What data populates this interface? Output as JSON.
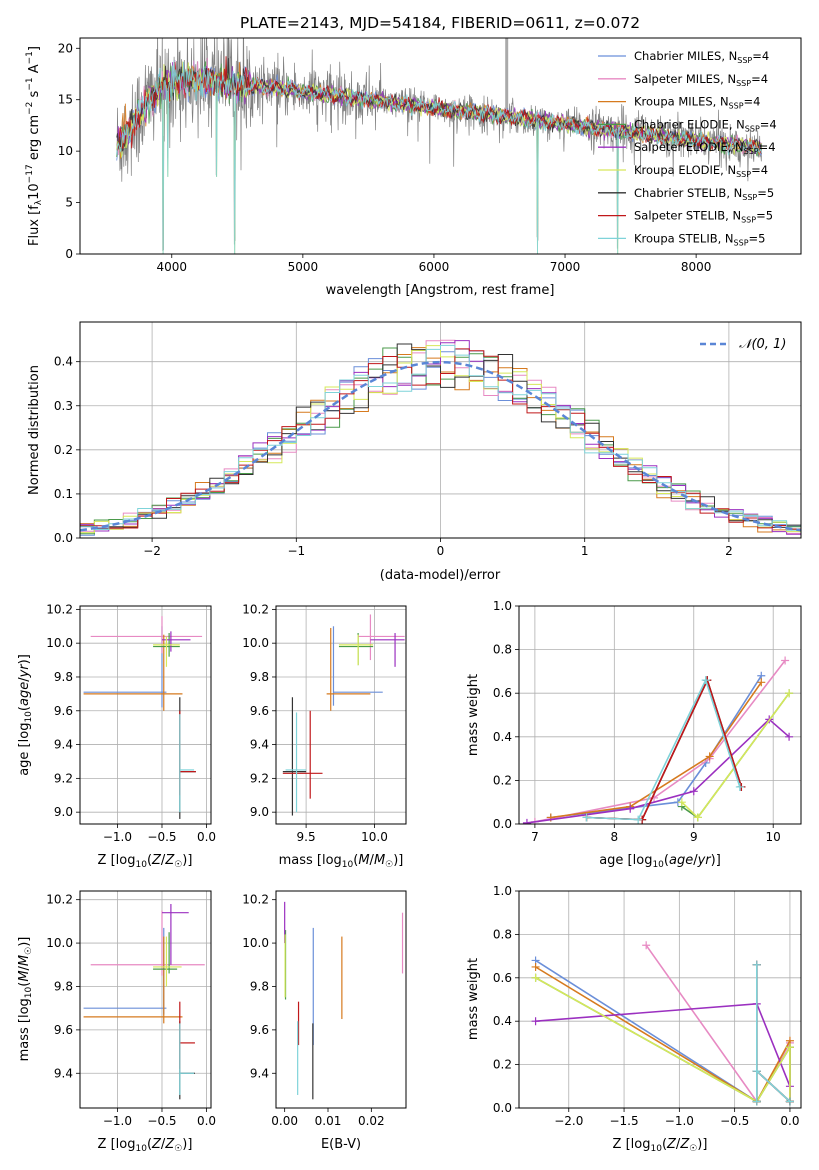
{
  "figure": {
    "title": "PLATE=2143, MJD=54184, FIBERID=0611, z=0.072",
    "models": [
      {
        "label_main": "Chabrier MILES, N",
        "label_sub": "SSP",
        "label_end": "=4",
        "color": "#6b8fd9"
      },
      {
        "label_main": "Salpeter MILES, N",
        "label_sub": "SSP",
        "label_end": "=4",
        "color": "#e78ac3"
      },
      {
        "label_main": "Kroupa MILES, N",
        "label_sub": "SSP",
        "label_end": "=4",
        "color": "#d67a1f"
      },
      {
        "label_main": "Chabrier ELODIE, N",
        "label_sub": "SSP",
        "label_end": "=4",
        "color": "#4a9a4a"
      },
      {
        "label_main": "Salpeter ELODIE, N",
        "label_sub": "SSP",
        "label_end": "=4",
        "color": "#9b30c0"
      },
      {
        "label_main": "Kroupa ELODIE, N",
        "label_sub": "SSP",
        "label_end": "=4",
        "color": "#d6e85a"
      },
      {
        "label_main": "Chabrier STELIB, N",
        "label_sub": "SSP",
        "label_end": "=5",
        "color": "#333333"
      },
      {
        "label_main": "Salpeter STELIB, N",
        "label_sub": "SSP",
        "label_end": "=5",
        "color": "#c0181a"
      },
      {
        "label_main": "Kroupa STELIB, N",
        "label_sub": "SSP",
        "label_end": "=5",
        "color": "#7fd3d9"
      }
    ],
    "data_color": "#808080",
    "gauss_color": "#5a86d6"
  },
  "chart_data": [
    {
      "id": "spectrum",
      "type": "line",
      "xlabel": "wavelength [Angstrom, rest frame]",
      "ylabel": "Flux [f_λ 10^-17 erg cm^-2 s^-1 A^-1]",
      "xlim": [
        3300,
        8800
      ],
      "ylim": [
        0,
        21
      ],
      "xticks": [
        4000,
        5000,
        6000,
        7000,
        8000
      ],
      "yticks": [
        0,
        5,
        10,
        15,
        20
      ],
      "grid": false,
      "legend": "top-right",
      "continuum": {
        "x": [
          3580,
          3700,
          3850,
          3950,
          4100,
          4300,
          4500,
          4800,
          5000,
          5200,
          5500,
          5800,
          6000,
          6300,
          6600,
          6900,
          7200,
          7400,
          7700,
          8000,
          8300,
          8500
        ],
        "y": [
          10.5,
          12.5,
          15.5,
          16.5,
          17.0,
          16.8,
          16.5,
          16.2,
          15.8,
          15.5,
          15.0,
          14.5,
          14.2,
          13.8,
          13.3,
          12.8,
          12.3,
          12.0,
          11.5,
          11.0,
          10.6,
          10.3
        ]
      },
      "absorption_dips": [
        {
          "x": 3934,
          "y": 0
        },
        {
          "x": 3969,
          "y": 7.5
        },
        {
          "x": 4340,
          "y": 7.5
        },
        {
          "x": 4480,
          "y": 0
        },
        {
          "x": 6790,
          "y": 0
        },
        {
          "x": 7400,
          "y": 0
        }
      ]
    },
    {
      "id": "residuals",
      "type": "histogram",
      "xlabel": "(data-model)/error",
      "ylabel": "Normed distribution",
      "xlim": [
        -2.5,
        2.5
      ],
      "ylim": [
        0,
        0.49
      ],
      "xticks": [
        -2,
        -1,
        0,
        1,
        2
      ],
      "yticks": [
        0.0,
        0.1,
        0.2,
        0.3,
        0.4
      ],
      "grid": true,
      "legend": "top-right",
      "legend_label": "𝒩(0, 1)",
      "bin_width": 0.1
    },
    {
      "id": "age_vs_Z",
      "type": "errorbar",
      "xlabel": "Z [log10(Z/Z☉)]",
      "ylabel": "age  [log10(age/yr)]",
      "xlim": [
        -1.42,
        0.05
      ],
      "ylim": [
        8.93,
        10.22
      ],
      "xticks": [
        -1.0,
        -0.5,
        0.0
      ],
      "yticks": [
        9.0,
        9.2,
        9.4,
        9.6,
        9.8,
        10.0,
        10.2
      ],
      "grid": true,
      "points": [
        {
          "m": 0,
          "x": -0.5,
          "xlo": -1.38,
          "xhi": -0.45,
          "y": 9.71,
          "ylo": 9.62,
          "yhi": 10.1
        },
        {
          "m": 1,
          "x": -0.5,
          "xlo": -1.3,
          "xhi": -0.05,
          "y": 10.04,
          "ylo": 9.94,
          "yhi": 10.16
        },
        {
          "m": 2,
          "x": -0.48,
          "xlo": -1.38,
          "xhi": -0.27,
          "y": 9.7,
          "ylo": 9.6,
          "yhi": 10.05
        },
        {
          "m": 3,
          "x": -0.42,
          "xlo": -0.6,
          "xhi": -0.3,
          "y": 9.98,
          "ylo": 9.92,
          "yhi": 10.06
        },
        {
          "m": 4,
          "x": -0.4,
          "xlo": -0.5,
          "xhi": -0.18,
          "y": 10.02,
          "ylo": 9.95,
          "yhi": 10.07
        },
        {
          "m": 5,
          "x": -0.45,
          "xlo": -0.6,
          "xhi": -0.3,
          "y": 9.99,
          "ylo": 9.86,
          "yhi": 10.04
        },
        {
          "m": 6,
          "x": -0.3,
          "xlo": -0.3,
          "xhi": -0.12,
          "y": 9.24,
          "ylo": 8.96,
          "yhi": 9.68
        },
        {
          "m": 7,
          "x": -0.3,
          "xlo": -0.3,
          "xhi": -0.12,
          "y": 9.24,
          "ylo": 9.1,
          "yhi": 9.6
        },
        {
          "m": 8,
          "x": -0.3,
          "xlo": -0.3,
          "xhi": -0.14,
          "y": 9.25,
          "ylo": 9.0,
          "yhi": 9.58
        }
      ]
    },
    {
      "id": "age_vs_mass",
      "type": "errorbar",
      "xlabel": "mass [log10(M/M☉)]",
      "ylabel": "",
      "xlim": [
        9.28,
        10.23
      ],
      "ylim": [
        8.93,
        10.22
      ],
      "xticks": [
        9.5,
        10.0
      ],
      "yticks": [
        9.0,
        9.2,
        9.4,
        9.6,
        9.8,
        10.0,
        10.2
      ],
      "grid": true,
      "points": [
        {
          "m": 0,
          "x": 9.7,
          "xlo": 9.7,
          "xhi": 10.06,
          "y": 9.71,
          "ylo": 9.63,
          "yhi": 10.1
        },
        {
          "m": 1,
          "x": 9.97,
          "xlo": 9.88,
          "xhi": 10.22,
          "y": 10.04,
          "ylo": 9.9,
          "yhi": 10.17
        },
        {
          "m": 2,
          "x": 9.68,
          "xlo": 9.65,
          "xhi": 9.97,
          "y": 9.7,
          "ylo": 9.6,
          "yhi": 10.09
        },
        {
          "m": 3,
          "x": 9.88,
          "xlo": 9.74,
          "xhi": 9.99,
          "y": 9.98,
          "ylo": 9.87,
          "yhi": 10.06
        },
        {
          "m": 4,
          "x": 10.15,
          "xlo": 9.97,
          "xhi": 10.22,
          "y": 10.02,
          "ylo": 9.86,
          "yhi": 10.06
        },
        {
          "m": 5,
          "x": 9.88,
          "xlo": 9.74,
          "xhi": 9.99,
          "y": 9.99,
          "ylo": 9.87,
          "yhi": 10.05
        },
        {
          "m": 6,
          "x": 9.4,
          "xlo": 9.33,
          "xhi": 9.5,
          "y": 9.24,
          "ylo": 8.98,
          "yhi": 9.68
        },
        {
          "m": 7,
          "x": 9.53,
          "xlo": 9.33,
          "xhi": 9.62,
          "y": 9.23,
          "ylo": 9.08,
          "yhi": 9.6
        },
        {
          "m": 8,
          "x": 9.43,
          "xlo": 9.35,
          "xhi": 9.5,
          "y": 9.25,
          "ylo": 9.0,
          "yhi": 9.59
        }
      ]
    },
    {
      "id": "weight_vs_age",
      "type": "line",
      "xlabel": "age  [log10(age/yr)]",
      "ylabel": "mass weight",
      "xlim": [
        6.8,
        10.35
      ],
      "ylim": [
        0.0,
        1.0
      ],
      "xticks": [
        7,
        8,
        9,
        10
      ],
      "yticks": [
        0.0,
        0.2,
        0.4,
        0.6,
        0.8,
        1.0
      ],
      "grid": true,
      "series": [
        {
          "m": 0,
          "x": [
            7.2,
            8.8,
            9.15,
            9.85
          ],
          "y": [
            0.03,
            0.1,
            0.28,
            0.68
          ]
        },
        {
          "m": 1,
          "x": [
            7.0,
            8.5,
            9.2,
            10.15
          ],
          "y": [
            0.01,
            0.12,
            0.3,
            0.75
          ]
        },
        {
          "m": 2,
          "x": [
            7.2,
            8.2,
            9.2,
            9.85
          ],
          "y": [
            0.03,
            0.08,
            0.31,
            0.65
          ]
        },
        {
          "m": 3,
          "x": [
            8.85,
            9.05,
            10.2
          ],
          "y": [
            0.08,
            0.03,
            0.6
          ]
        },
        {
          "m": 4,
          "x": [
            6.9,
            8.2,
            9.0,
            9.95,
            10.2
          ],
          "y": [
            0.005,
            0.07,
            0.15,
            0.48,
            0.4
          ]
        },
        {
          "m": 5,
          "x": [
            8.85,
            9.05,
            10.2
          ],
          "y": [
            0.1,
            0.03,
            0.6
          ]
        },
        {
          "m": 6,
          "x": [
            7.65,
            8.35,
            9.17,
            9.6
          ],
          "y": [
            0.03,
            0.02,
            0.66,
            0.17
          ]
        },
        {
          "m": 7,
          "x": [
            7.65,
            8.35,
            9.17,
            9.6
          ],
          "y": [
            0.03,
            0.02,
            0.66,
            0.17
          ]
        },
        {
          "m": 8,
          "x": [
            7.65,
            8.3,
            9.15,
            9.58
          ],
          "y": [
            0.03,
            0.02,
            0.66,
            0.17
          ]
        }
      ]
    },
    {
      "id": "mass_vs_Z",
      "type": "errorbar",
      "xlabel": "Z [log10(Z/Z☉)]",
      "ylabel": "mass [log10(M/M☉)]",
      "xlim": [
        -1.42,
        0.05
      ],
      "ylim": [
        9.24,
        10.24
      ],
      "xticks": [
        -1.0,
        -0.5,
        0.0
      ],
      "yticks": [
        9.4,
        9.6,
        9.8,
        10.0,
        10.2
      ],
      "grid": true,
      "points": [
        {
          "m": 0,
          "x": -0.48,
          "xlo": -1.38,
          "xhi": -0.45,
          "y": 9.7,
          "ylo": 9.67,
          "yhi": 10.07
        },
        {
          "m": 1,
          "x": -0.5,
          "xlo": -1.3,
          "xhi": -0.02,
          "y": 9.9,
          "ylo": 9.85,
          "yhi": 10.15
        },
        {
          "m": 2,
          "x": -0.48,
          "xlo": -1.38,
          "xhi": -0.27,
          "y": 9.66,
          "ylo": 9.63,
          "yhi": 10.03
        },
        {
          "m": 3,
          "x": -0.42,
          "xlo": -0.6,
          "xhi": -0.33,
          "y": 9.88,
          "ylo": 9.86,
          "yhi": 10.05
        },
        {
          "m": 4,
          "x": -0.4,
          "xlo": -0.5,
          "xhi": -0.2,
          "y": 10.14,
          "ylo": 9.9,
          "yhi": 10.18
        },
        {
          "m": 5,
          "x": -0.45,
          "xlo": -0.6,
          "xhi": -0.28,
          "y": 9.89,
          "ylo": 9.8,
          "yhi": 10.03
        },
        {
          "m": 6,
          "x": -0.3,
          "xlo": -0.3,
          "xhi": -0.13,
          "y": 9.4,
          "ylo": 9.28,
          "yhi": 9.64
        },
        {
          "m": 7,
          "x": -0.3,
          "xlo": -0.3,
          "xhi": -0.13,
          "y": 9.54,
          "ylo": 9.42,
          "yhi": 9.73
        },
        {
          "m": 8,
          "x": -0.3,
          "xlo": -0.3,
          "xhi": -0.14,
          "y": 9.4,
          "ylo": 9.3,
          "yhi": 9.63
        }
      ]
    },
    {
      "id": "mass_vs_ebv",
      "type": "errorbar",
      "xlabel": "E(B-V)",
      "ylabel": "",
      "xlim": [
        -0.002,
        0.028
      ],
      "ylim": [
        9.24,
        10.24
      ],
      "xticks": [
        0.0,
        0.01,
        0.02
      ],
      "yticks": [
        9.4,
        9.6,
        9.8,
        10.0,
        10.2
      ],
      "grid": false,
      "points": [
        {
          "m": 0,
          "x": 0.0066,
          "y": 9.8,
          "ylo": 9.53,
          "yhi": 10.07
        },
        {
          "m": 1,
          "x": 0.0272,
          "y": 10.0,
          "ylo": 9.86,
          "yhi": 10.14
        },
        {
          "m": 2,
          "x": 0.0132,
          "y": 9.84,
          "ylo": 9.65,
          "yhi": 10.03
        },
        {
          "m": 3,
          "x": 0.0002,
          "y": 9.9,
          "ylo": 9.74,
          "yhi": 10.06
        },
        {
          "m": 4,
          "x": 0.0,
          "y": 10.1,
          "ylo": 10.0,
          "yhi": 10.19
        },
        {
          "m": 5,
          "x": 0.0001,
          "y": 9.9,
          "ylo": 9.75,
          "yhi": 10.04
        },
        {
          "m": 6,
          "x": 0.0065,
          "y": 9.45,
          "ylo": 9.28,
          "yhi": 9.63
        },
        {
          "m": 7,
          "x": 0.0032,
          "y": 9.63,
          "ylo": 9.53,
          "yhi": 9.73
        },
        {
          "m": 8,
          "x": 0.003,
          "y": 9.45,
          "ylo": 9.3,
          "yhi": 9.64
        }
      ]
    },
    {
      "id": "weight_vs_Z",
      "type": "line",
      "xlabel": "Z [log10(Z/Z☉)]",
      "ylabel": "mass weight",
      "xlim": [
        -2.45,
        0.1
      ],
      "ylim": [
        0.0,
        1.0
      ],
      "xticks": [
        -2.0,
        -1.5,
        -1.0,
        -0.5,
        0.0
      ],
      "yticks": [
        0.0,
        0.2,
        0.4,
        0.6,
        0.8,
        1.0
      ],
      "grid": true,
      "series": [
        {
          "m": 0,
          "x": [
            -2.3,
            -0.3,
            0.0,
            0.0
          ],
          "y": [
            0.68,
            0.03,
            0.28,
            0.03
          ]
        },
        {
          "m": 1,
          "x": [
            -1.3,
            -0.3,
            0.0,
            0.0
          ],
          "y": [
            0.75,
            0.03,
            0.3,
            0.03
          ]
        },
        {
          "m": 2,
          "x": [
            -2.3,
            -0.3,
            0.0,
            0.0
          ],
          "y": [
            0.65,
            0.03,
            0.31,
            0.03
          ]
        },
        {
          "m": 3,
          "x": [
            -2.3,
            -0.3,
            0.0,
            0.0
          ],
          "y": [
            0.6,
            0.03,
            0.28,
            0.03
          ]
        },
        {
          "m": 4,
          "x": [
            -2.3,
            -0.3,
            0.0,
            0.0
          ],
          "y": [
            0.4,
            0.48,
            0.1,
            0.03
          ]
        },
        {
          "m": 5,
          "x": [
            -2.3,
            -0.3,
            0.0,
            0.0
          ],
          "y": [
            0.6,
            0.03,
            0.28,
            0.03
          ]
        },
        {
          "m": 6,
          "x": [
            -0.3,
            -0.3,
            -0.3,
            0.0
          ],
          "y": [
            0.66,
            0.03,
            0.17,
            0.03
          ]
        },
        {
          "m": 7,
          "x": [
            -0.3,
            -0.3,
            -0.3,
            0.0
          ],
          "y": [
            0.66,
            0.03,
            0.17,
            0.03
          ]
        },
        {
          "m": 8,
          "x": [
            -0.3,
            -0.3,
            -0.3,
            0.0
          ],
          "y": [
            0.66,
            0.03,
            0.17,
            0.03
          ]
        }
      ]
    }
  ]
}
